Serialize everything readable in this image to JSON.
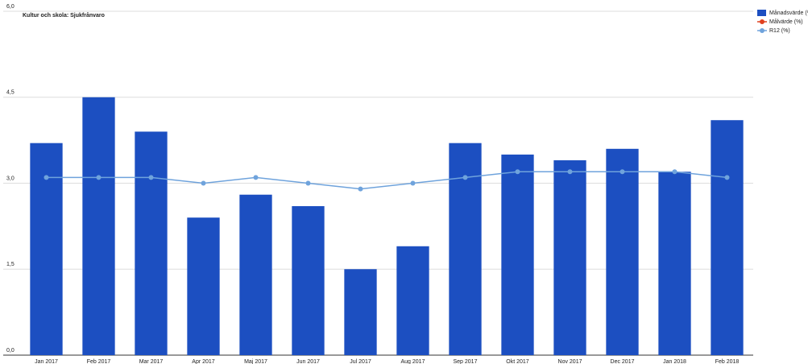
{
  "chart_data": {
    "type": "bar+line",
    "title": "Kultur och skola: Sjukfrånvaro",
    "categories": [
      "Jan 2017",
      "Feb 2017",
      "Mar 2017",
      "Apr 2017",
      "Maj 2017",
      "Jun 2017",
      "Jul 2017",
      "Aug 2017",
      "Sep 2017",
      "Okt 2017",
      "Nov 2017",
      "Dec 2017",
      "Jan 2018",
      "Feb 2018"
    ],
    "series": [
      {
        "name": "Månadsvärde (%)",
        "type": "bar",
        "color": "#1c4fc1",
        "values": [
          3.7,
          4.5,
          3.9,
          2.4,
          2.8,
          2.6,
          1.5,
          1.9,
          3.7,
          3.5,
          3.4,
          3.6,
          3.2,
          4.1
        ]
      },
      {
        "name": "Målvärde (%)",
        "type": "line",
        "color": "#e0401f",
        "values": [
          null,
          null,
          null,
          null,
          null,
          null,
          null,
          null,
          null,
          null,
          null,
          null,
          null,
          null
        ]
      },
      {
        "name": "R12 (%)",
        "type": "line",
        "color": "#6fa3dc",
        "values": [
          3.1,
          3.1,
          3.1,
          3.0,
          3.1,
          3.0,
          2.9,
          3.0,
          3.1,
          3.2,
          3.2,
          3.2,
          3.2,
          3.1
        ]
      }
    ],
    "ylim": [
      0,
      6
    ],
    "yticks": [
      {
        "value": 0,
        "label": "0,0"
      },
      {
        "value": 1.5,
        "label": "1,5"
      },
      {
        "value": 3,
        "label": "3,0"
      },
      {
        "value": 4.5,
        "label": "4,5"
      },
      {
        "value": 6,
        "label": "6,0"
      }
    ],
    "grid": true,
    "legend": "top-right"
  }
}
